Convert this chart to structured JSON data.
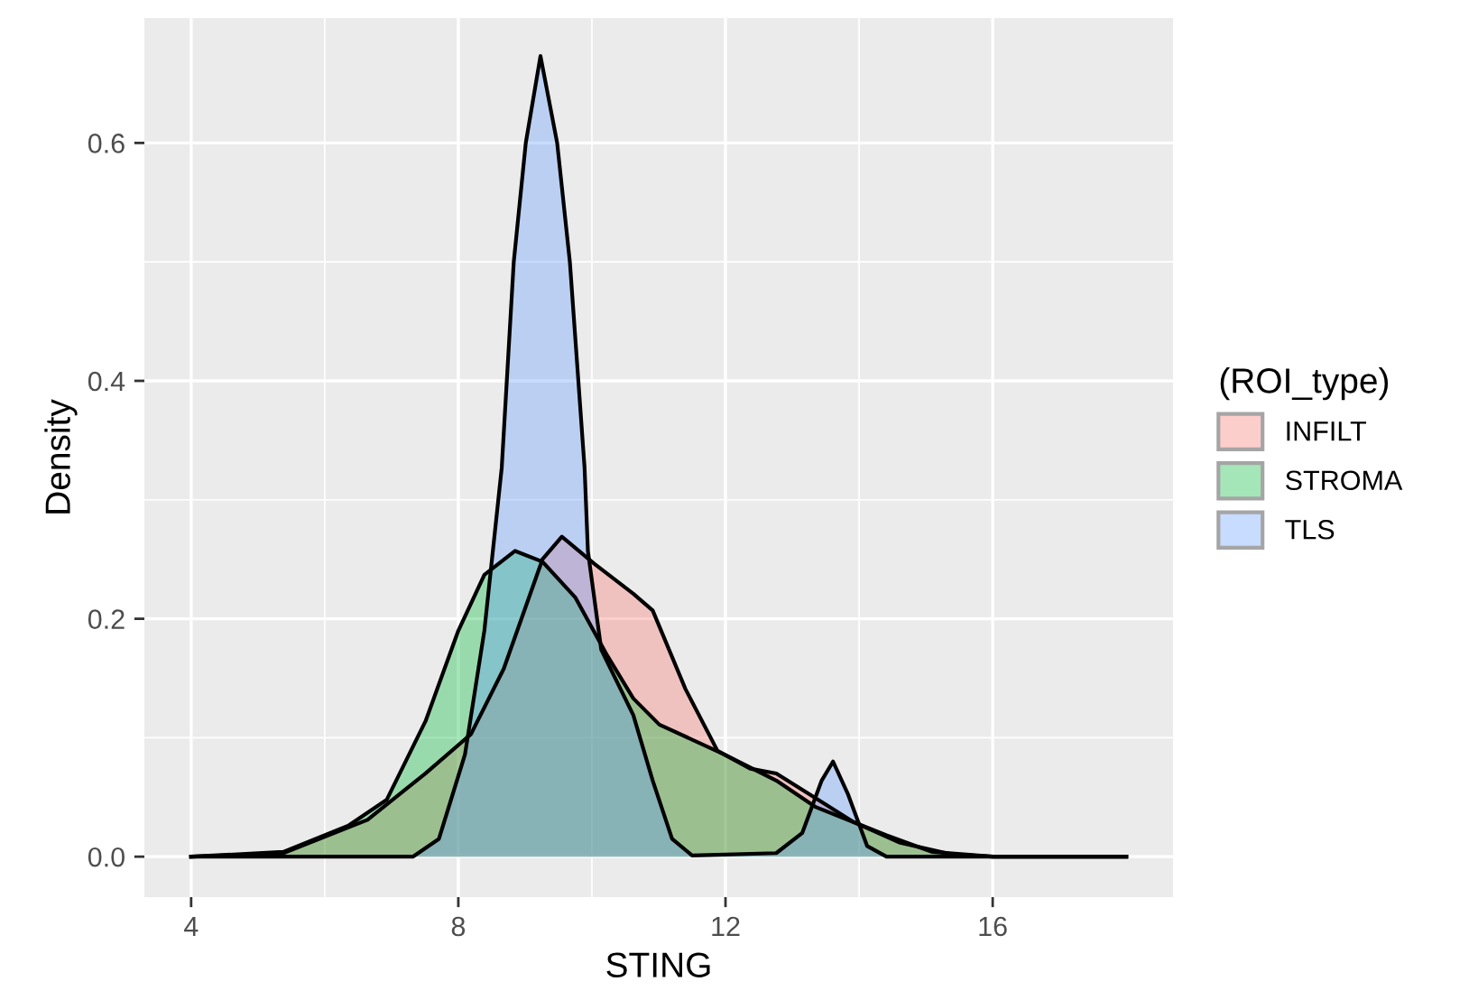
{
  "chart_data": {
    "type": "area",
    "xlabel": "STING",
    "ylabel": "Density",
    "legend_title": "(ROI_type)",
    "legend": "right",
    "grid": true,
    "xlim": [
      3.3,
      18.7
    ],
    "ylim": [
      -0.034,
      0.705
    ],
    "xticks": [
      4,
      8,
      12,
      16
    ],
    "yticks": [
      {
        "value": 0,
        "label": "0.0"
      },
      0.2,
      0.4,
      0.6
    ],
    "series": [
      {
        "name": "INFILT",
        "color": "#f8766d",
        "x": [
          4,
          5.38,
          6.64,
          7.51,
          8.19,
          8.68,
          9.26,
          9.55,
          10.04,
          10.62,
          10.91,
          11.4,
          11.88,
          12.37,
          12.76,
          13.24,
          13.92,
          14.6,
          15.38,
          16,
          18
        ],
        "values": [
          0,
          0.003,
          0.031,
          0.07,
          0.103,
          0.158,
          0.25,
          0.269,
          0.246,
          0.221,
          0.207,
          0.141,
          0.089,
          0.074,
          0.07,
          0.053,
          0.029,
          0.012,
          0.002,
          0,
          0
        ]
      },
      {
        "name": "STROMA",
        "color": "#00ba38",
        "x": [
          4,
          5.38,
          6.35,
          6.93,
          7.51,
          8.0,
          8.39,
          8.85,
          9.26,
          9.75,
          10.23,
          10.62,
          11.01,
          11.98,
          12.76,
          13.34,
          13.92,
          14.41,
          15.09,
          16,
          18
        ],
        "values": [
          0,
          0.004,
          0.026,
          0.048,
          0.114,
          0.19,
          0.237,
          0.257,
          0.248,
          0.218,
          0.169,
          0.133,
          0.111,
          0.086,
          0.064,
          0.042,
          0.029,
          0.018,
          0.004,
          0,
          0
        ]
      },
      {
        "name": "TLS",
        "color": "#619cff",
        "x": [
          4,
          7.32,
          7.71,
          8.1,
          8.39,
          8.65,
          8.83,
          9.01,
          9.23,
          9.48,
          9.67,
          9.89,
          9.94,
          10.14,
          10.62,
          10.91,
          11.2,
          11.5,
          12.76,
          13.15,
          13.44,
          13.61,
          13.83,
          14.12,
          14.41,
          18
        ],
        "values": [
          0,
          0,
          0.015,
          0.086,
          0.19,
          0.327,
          0.5,
          0.6,
          0.673,
          0.6,
          0.5,
          0.327,
          0.257,
          0.174,
          0.119,
          0.064,
          0.015,
          0.001,
          0.003,
          0.02,
          0.064,
          0.08,
          0.053,
          0.009,
          0,
          0
        ]
      }
    ]
  }
}
